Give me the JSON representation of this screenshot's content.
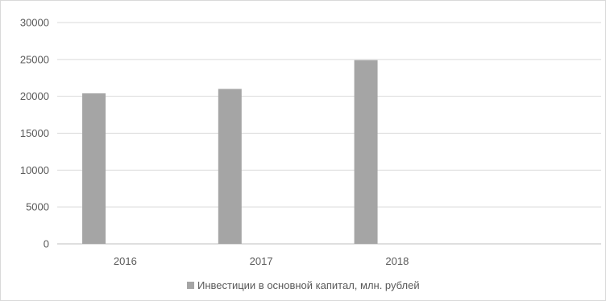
{
  "chart_data": {
    "type": "bar",
    "categories": [
      "2016",
      "2017",
      "2018"
    ],
    "series": [
      {
        "name": "Инвестиции в основной капитал, млн. рублей",
        "values": [
          20400,
          21000,
          24900
        ]
      }
    ],
    "ylim": [
      0,
      30000
    ],
    "yticks": [
      "0",
      "5000",
      "10000",
      "15000",
      "20000",
      "25000",
      "30000"
    ],
    "grid": true,
    "legend": "bottom",
    "colors": {
      "bar": "#a5a5a5",
      "grid": "#d9d9d9",
      "axis": "#bfbfbf",
      "text": "#595959"
    }
  }
}
